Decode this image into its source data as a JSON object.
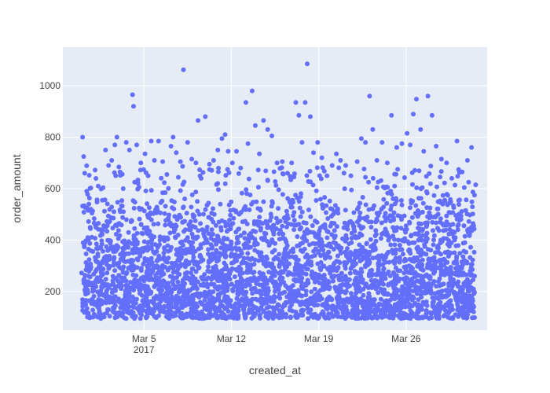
{
  "chart_data": {
    "type": "scatter",
    "title": "",
    "xlabel": "created_at",
    "ylabel": "order_amount",
    "x_range": [
      "2017-02-26T12:00",
      "2017-04-01T12:00"
    ],
    "y_range": [
      50,
      1150
    ],
    "x_ticks": [
      {
        "value": "2017-03-05",
        "label": "Mar 5",
        "sublabel": "2017"
      },
      {
        "value": "2017-03-12",
        "label": "Mar 12",
        "sublabel": ""
      },
      {
        "value": "2017-03-19",
        "label": "Mar 19",
        "sublabel": ""
      },
      {
        "value": "2017-03-26",
        "label": "Mar 26",
        "sublabel": ""
      }
    ],
    "y_ticks": [
      {
        "value": 200,
        "label": "200"
      },
      {
        "value": 400,
        "label": "400"
      },
      {
        "value": 600,
        "label": "600"
      },
      {
        "value": 800,
        "label": "800"
      },
      {
        "value": 1000,
        "label": "1000"
      }
    ],
    "grid": true,
    "legend": "none",
    "colors": {
      "marker": "#636efa",
      "plot_background": "#e5ecf6",
      "grid": "#ffffff",
      "text": "#444444"
    },
    "points": [
      [
        "2017-02-28T02:00",
        800
      ],
      [
        "2017-02-28T04:00",
        725
      ],
      [
        "2017-02-28T06:00",
        660
      ],
      [
        "2017-02-28T10:00",
        590
      ],
      [
        "2017-02-28T14:00",
        540
      ],
      [
        "2017-02-28T20:00",
        505
      ],
      [
        "2017-03-01T02:00",
        672
      ],
      [
        "2017-03-01T08:00",
        610
      ],
      [
        "2017-03-01T16:00",
        555
      ],
      [
        "2017-03-01T22:00",
        750
      ],
      [
        "2017-03-02T04:00",
        690
      ],
      [
        "2017-03-02T10:00",
        710
      ],
      [
        "2017-03-02T16:00",
        770
      ],
      [
        "2017-03-02T20:00",
        800
      ],
      [
        "2017-03-03T02:00",
        665
      ],
      [
        "2017-03-03T08:00",
        600
      ],
      [
        "2017-03-03T14:00",
        780
      ],
      [
        "2017-03-03T20:00",
        750
      ],
      [
        "2017-03-04T02:00",
        965
      ],
      [
        "2017-03-04T04:00",
        920
      ],
      [
        "2017-03-04T10:00",
        770
      ],
      [
        "2017-03-04T18:00",
        700
      ],
      [
        "2017-03-05T02:00",
        735
      ],
      [
        "2017-03-05T08:00",
        650
      ],
      [
        "2017-03-05T14:00",
        785
      ],
      [
        "2017-03-05T20:00",
        710
      ],
      [
        "2017-03-06T04:00",
        785
      ],
      [
        "2017-03-06T12:00",
        705
      ],
      [
        "2017-03-06T20:00",
        655
      ],
      [
        "2017-03-07T04:00",
        765
      ],
      [
        "2017-03-07T08:00",
        800
      ],
      [
        "2017-03-07T14:00",
        740
      ],
      [
        "2017-03-07T22:00",
        705
      ],
      [
        "2017-03-08T04:00",
        1062
      ],
      [
        "2017-03-08T12:00",
        780
      ],
      [
        "2017-03-08T20:00",
        715
      ],
      [
        "2017-03-09T04:00",
        700
      ],
      [
        "2017-03-09T08:00",
        865
      ],
      [
        "2017-03-09T14:00",
        640
      ],
      [
        "2017-03-09T22:00",
        880
      ],
      [
        "2017-03-10T06:00",
        695
      ],
      [
        "2017-03-10T14:00",
        710
      ],
      [
        "2017-03-10T22:00",
        750
      ],
      [
        "2017-03-11T06:00",
        795
      ],
      [
        "2017-03-11T12:00",
        810
      ],
      [
        "2017-03-11T18:00",
        745
      ],
      [
        "2017-03-12T02:00",
        700
      ],
      [
        "2017-03-12T10:00",
        745
      ],
      [
        "2017-03-12T18:00",
        680
      ],
      [
        "2017-03-13T04:00",
        935
      ],
      [
        "2017-03-13T08:00",
        775
      ],
      [
        "2017-03-13T16:00",
        980
      ],
      [
        "2017-03-13T22:00",
        845
      ],
      [
        "2017-03-14T06:00",
        735
      ],
      [
        "2017-03-14T14:00",
        865
      ],
      [
        "2017-03-14T22:00",
        830
      ],
      [
        "2017-03-15T06:00",
        805
      ],
      [
        "2017-03-15T16:00",
        700
      ],
      [
        "2017-03-16T02:00",
        705
      ],
      [
        "2017-03-16T12:00",
        660
      ],
      [
        "2017-03-16T20:00",
        700
      ],
      [
        "2017-03-17T04:00",
        935
      ],
      [
        "2017-03-17T10:00",
        885
      ],
      [
        "2017-03-17T16:00",
        780
      ],
      [
        "2017-03-17T22:00",
        935
      ],
      [
        "2017-03-18T02:00",
        1085
      ],
      [
        "2017-03-18T08:00",
        880
      ],
      [
        "2017-03-18T14:00",
        740
      ],
      [
        "2017-03-18T22:00",
        780
      ],
      [
        "2017-03-19T06:00",
        720
      ],
      [
        "2017-03-19T16:00",
        650
      ],
      [
        "2017-03-20T02:00",
        690
      ],
      [
        "2017-03-20T10:00",
        735
      ],
      [
        "2017-03-20T18:00",
        710
      ],
      [
        "2017-03-21T04:00",
        690
      ],
      [
        "2017-03-21T14:00",
        650
      ],
      [
        "2017-03-22T02:00",
        705
      ],
      [
        "2017-03-22T10:00",
        795
      ],
      [
        "2017-03-22T18:00",
        780
      ],
      [
        "2017-03-23T02:00",
        960
      ],
      [
        "2017-03-23T08:00",
        830
      ],
      [
        "2017-03-23T16:00",
        710
      ],
      [
        "2017-03-24T02:00",
        780
      ],
      [
        "2017-03-24T12:00",
        700
      ],
      [
        "2017-03-24T20:00",
        885
      ],
      [
        "2017-03-25T06:00",
        760
      ],
      [
        "2017-03-25T16:00",
        775
      ],
      [
        "2017-03-26T02:00",
        815
      ],
      [
        "2017-03-26T08:00",
        770
      ],
      [
        "2017-03-26T14:00",
        890
      ],
      [
        "2017-03-26T20:00",
        948
      ],
      [
        "2017-03-27T04:00",
        830
      ],
      [
        "2017-03-27T10:00",
        745
      ],
      [
        "2017-03-27T18:00",
        960
      ],
      [
        "2017-03-28T02:00",
        885
      ],
      [
        "2017-03-28T10:00",
        765
      ],
      [
        "2017-03-28T20:00",
        715
      ],
      [
        "2017-03-29T06:00",
        700
      ],
      [
        "2017-03-29T16:00",
        640
      ],
      [
        "2017-03-30T02:00",
        785
      ],
      [
        "2017-03-30T12:00",
        665
      ],
      [
        "2017-03-30T22:00",
        710
      ],
      [
        "2017-03-31T06:00",
        760
      ],
      [
        "2017-03-31T14:00",
        615
      ]
    ],
    "point_bands": [
      {
        "from": "2017-02-28T00:00",
        "to": "2017-03-31T12:00",
        "y_min": 95,
        "y_max": 220,
        "count": 1400
      },
      {
        "from": "2017-02-28T00:00",
        "to": "2017-03-31T12:00",
        "y_min": 220,
        "y_max": 360,
        "count": 1150
      },
      {
        "from": "2017-02-28T00:00",
        "to": "2017-03-31T12:00",
        "y_min": 360,
        "y_max": 460,
        "count": 550
      },
      {
        "from": "2017-02-28T00:00",
        "to": "2017-03-31T12:00",
        "y_min": 460,
        "y_max": 560,
        "count": 350
      },
      {
        "from": "2017-02-28T00:00",
        "to": "2017-03-31T12:00",
        "y_min": 560,
        "y_max": 690,
        "count": 150
      }
    ]
  }
}
